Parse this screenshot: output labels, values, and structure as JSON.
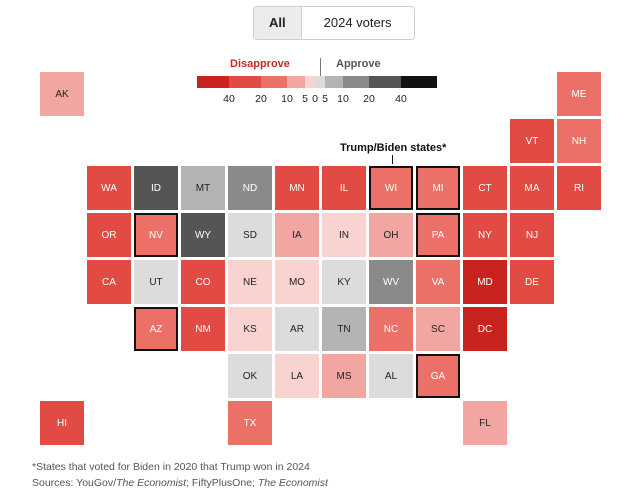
{
  "toggle": {
    "options": [
      "All",
      "2024 voters"
    ],
    "selected": "All"
  },
  "legend": {
    "disapprove_label": "Disapprove",
    "approve_label": "Approve",
    "ticks": [
      "40",
      "20",
      "10",
      "5",
      "0",
      "5",
      "10",
      "20",
      "40"
    ],
    "bins": [
      {
        "range": "disapprove 40+",
        "color": "#c8231f"
      },
      {
        "range": "disapprove 20-40",
        "color": "#e24a44"
      },
      {
        "range": "disapprove 10-20",
        "color": "#ea7068"
      },
      {
        "range": "disapprove 5-10",
        "color": "#f2a6a1"
      },
      {
        "range": "disapprove 0-5",
        "color": "#f9d3cf"
      },
      {
        "range": "approve 0-5",
        "color": "#dcdcdc"
      },
      {
        "range": "approve 5-10",
        "color": "#b4b4b4"
      },
      {
        "range": "approve 10-20",
        "color": "#8a8a8a"
      },
      {
        "range": "approve 20-40",
        "color": "#555555"
      },
      {
        "range": "approve 40+",
        "color": "#111111"
      }
    ]
  },
  "callout": {
    "label": "Trump/Biden states*"
  },
  "chart_data": {
    "type": "heatmap",
    "description_metric": "Net approval, binned (negative = disapprove, positive = approve)",
    "states": [
      {
        "abbr": "AK",
        "row": 0,
        "col": 0,
        "bin": "disapprove 5-10",
        "flipped": false
      },
      {
        "abbr": "ME",
        "row": 0,
        "col": 11,
        "bin": "disapprove 10-20",
        "flipped": false
      },
      {
        "abbr": "VT",
        "row": 1,
        "col": 10,
        "bin": "disapprove 20-40",
        "flipped": false
      },
      {
        "abbr": "NH",
        "row": 1,
        "col": 11,
        "bin": "disapprove 10-20",
        "flipped": false
      },
      {
        "abbr": "WA",
        "row": 2,
        "col": 1,
        "bin": "disapprove 20-40",
        "flipped": false
      },
      {
        "abbr": "ID",
        "row": 2,
        "col": 2,
        "bin": "approve 20-40",
        "flipped": false
      },
      {
        "abbr": "MT",
        "row": 2,
        "col": 3,
        "bin": "approve 5-10",
        "flipped": false
      },
      {
        "abbr": "ND",
        "row": 2,
        "col": 4,
        "bin": "approve 10-20",
        "flipped": false
      },
      {
        "abbr": "MN",
        "row": 2,
        "col": 5,
        "bin": "disapprove 20-40",
        "flipped": false
      },
      {
        "abbr": "IL",
        "row": 2,
        "col": 6,
        "bin": "disapprove 20-40",
        "flipped": false
      },
      {
        "abbr": "WI",
        "row": 2,
        "col": 7,
        "bin": "disapprove 10-20",
        "flipped": true
      },
      {
        "abbr": "MI",
        "row": 2,
        "col": 8,
        "bin": "disapprove 10-20",
        "flipped": true
      },
      {
        "abbr": "CT",
        "row": 2,
        "col": 9,
        "bin": "disapprove 20-40",
        "flipped": false
      },
      {
        "abbr": "MA",
        "row": 2,
        "col": 10,
        "bin": "disapprove 20-40",
        "flipped": false
      },
      {
        "abbr": "RI",
        "row": 2,
        "col": 11,
        "bin": "disapprove 20-40",
        "flipped": false
      },
      {
        "abbr": "OR",
        "row": 3,
        "col": 1,
        "bin": "disapprove 20-40",
        "flipped": false
      },
      {
        "abbr": "NV",
        "row": 3,
        "col": 2,
        "bin": "disapprove 10-20",
        "flipped": true
      },
      {
        "abbr": "WY",
        "row": 3,
        "col": 3,
        "bin": "approve 20-40",
        "flipped": false
      },
      {
        "abbr": "SD",
        "row": 3,
        "col": 4,
        "bin": "approve 0-5",
        "flipped": false
      },
      {
        "abbr": "IA",
        "row": 3,
        "col": 5,
        "bin": "disapprove 5-10",
        "flipped": false
      },
      {
        "abbr": "IN",
        "row": 3,
        "col": 6,
        "bin": "disapprove 0-5",
        "flipped": false
      },
      {
        "abbr": "OH",
        "row": 3,
        "col": 7,
        "bin": "disapprove 5-10",
        "flipped": false
      },
      {
        "abbr": "PA",
        "row": 3,
        "col": 8,
        "bin": "disapprove 10-20",
        "flipped": true
      },
      {
        "abbr": "NY",
        "row": 3,
        "col": 9,
        "bin": "disapprove 20-40",
        "flipped": false
      },
      {
        "abbr": "NJ",
        "row": 3,
        "col": 10,
        "bin": "disapprove 20-40",
        "flipped": false
      },
      {
        "abbr": "CA",
        "row": 4,
        "col": 1,
        "bin": "disapprove 20-40",
        "flipped": false
      },
      {
        "abbr": "UT",
        "row": 4,
        "col": 2,
        "bin": "approve 0-5",
        "flipped": false
      },
      {
        "abbr": "CO",
        "row": 4,
        "col": 3,
        "bin": "disapprove 20-40",
        "flipped": false
      },
      {
        "abbr": "NE",
        "row": 4,
        "col": 4,
        "bin": "disapprove 0-5",
        "flipped": false
      },
      {
        "abbr": "MO",
        "row": 4,
        "col": 5,
        "bin": "disapprove 0-5",
        "flipped": false
      },
      {
        "abbr": "KY",
        "row": 4,
        "col": 6,
        "bin": "approve 0-5",
        "flipped": false
      },
      {
        "abbr": "WV",
        "row": 4,
        "col": 7,
        "bin": "approve 10-20",
        "flipped": false
      },
      {
        "abbr": "VA",
        "row": 4,
        "col": 8,
        "bin": "disapprove 10-20",
        "flipped": false
      },
      {
        "abbr": "MD",
        "row": 4,
        "col": 9,
        "bin": "disapprove 40+",
        "flipped": false
      },
      {
        "abbr": "DE",
        "row": 4,
        "col": 10,
        "bin": "disapprove 20-40",
        "flipped": false
      },
      {
        "abbr": "AZ",
        "row": 5,
        "col": 2,
        "bin": "disapprove 10-20",
        "flipped": true
      },
      {
        "abbr": "NM",
        "row": 5,
        "col": 3,
        "bin": "disapprove 20-40",
        "flipped": false
      },
      {
        "abbr": "KS",
        "row": 5,
        "col": 4,
        "bin": "disapprove 0-5",
        "flipped": false
      },
      {
        "abbr": "AR",
        "row": 5,
        "col": 5,
        "bin": "approve 0-5",
        "flipped": false
      },
      {
        "abbr": "TN",
        "row": 5,
        "col": 6,
        "bin": "approve 5-10",
        "flipped": false
      },
      {
        "abbr": "NC",
        "row": 5,
        "col": 7,
        "bin": "disapprove 10-20",
        "flipped": false
      },
      {
        "abbr": "SC",
        "row": 5,
        "col": 8,
        "bin": "disapprove 5-10",
        "flipped": false
      },
      {
        "abbr": "DC",
        "row": 5,
        "col": 9,
        "bin": "disapprove 40+",
        "flipped": false
      },
      {
        "abbr": "OK",
        "row": 6,
        "col": 4,
        "bin": "approve 0-5",
        "flipped": false
      },
      {
        "abbr": "LA",
        "row": 6,
        "col": 5,
        "bin": "disapprove 0-5",
        "flipped": false
      },
      {
        "abbr": "MS",
        "row": 6,
        "col": 6,
        "bin": "disapprove 5-10",
        "flipped": false
      },
      {
        "abbr": "AL",
        "row": 6,
        "col": 7,
        "bin": "approve 0-5",
        "flipped": false
      },
      {
        "abbr": "GA",
        "row": 6,
        "col": 8,
        "bin": "disapprove 10-20",
        "flipped": true
      },
      {
        "abbr": "HI",
        "row": 7,
        "col": 0,
        "bin": "disapprove 20-40",
        "flipped": false
      },
      {
        "abbr": "TX",
        "row": 7,
        "col": 4,
        "bin": "disapprove 10-20",
        "flipped": false
      },
      {
        "abbr": "FL",
        "row": 7,
        "col": 9,
        "bin": "disapprove 5-10",
        "flipped": false
      }
    ]
  },
  "footnote": "*States that voted for Biden in 2020 that Trump won in 2024",
  "sources": {
    "prefix": "Sources: YouGov/",
    "pub1": "The Economist",
    "middle": "; FiftyPlusOne; ",
    "pub2": "The Economist"
  }
}
